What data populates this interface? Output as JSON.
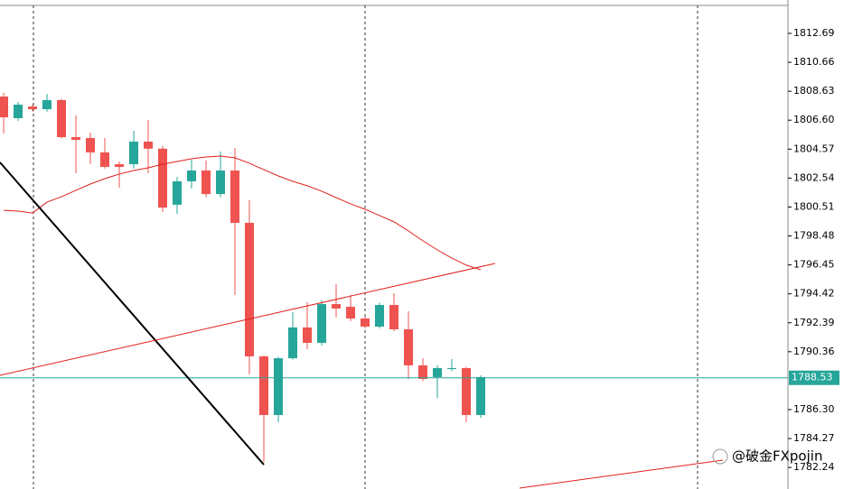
{
  "chart_data": {
    "type": "candlestick",
    "up_color": "#26a69a",
    "down_color": "#ef5350",
    "open": [
      1808.26,
      1806.74,
      1807.56,
      1807.37,
      1808.01,
      1805.41,
      1805.35,
      1804.34,
      1803.51,
      1803.51,
      1805.1,
      1804.6,
      1800.67,
      1802.31,
      1803.07,
      1801.42,
      1803.07,
      1799.4,
      1790.03,
      1785.92,
      1789.9,
      1792.06,
      1790.98,
      1793.7,
      1793.51,
      1792.69,
      1792.12,
      1793.64,
      1791.93,
      1789.4,
      1788.58,
      1789.15,
      1789.21,
      1785.92
    ],
    "high": [
      1808.51,
      1807.88,
      1807.7,
      1808.45,
      1808.1,
      1806.93,
      1805.73,
      1805.35,
      1803.7,
      1805.85,
      1806.61,
      1804.8,
      1802.62,
      1803.83,
      1803.77,
      1804.4,
      1804.65,
      1800.98,
      1790.1,
      1790.0,
      1793.13,
      1793.83,
      1793.96,
      1795.1,
      1794.34,
      1792.8,
      1793.8,
      1794.46,
      1793.2,
      1789.9,
      1789.4,
      1789.84,
      1789.3,
      1788.7
    ],
    "low": [
      1805.67,
      1806.55,
      1807.2,
      1807.2,
      1805.3,
      1802.88,
      1803.51,
      1803.2,
      1801.87,
      1803.2,
      1802.88,
      1800.16,
      1800.03,
      1801.8,
      1801.2,
      1801.2,
      1794.34,
      1788.77,
      1782.63,
      1785.41,
      1789.8,
      1790.54,
      1790.8,
      1792.77,
      1792.5,
      1792.0,
      1792.0,
      1791.8,
      1788.45,
      1788.3,
      1787.12,
      1789.0,
      1785.41,
      1785.73
    ],
    "close": [
      1806.8,
      1807.69,
      1807.37,
      1808.01,
      1805.41,
      1805.22,
      1804.34,
      1803.32,
      1803.32,
      1805.1,
      1804.6,
      1800.47,
      1802.31,
      1803.07,
      1801.42,
      1803.07,
      1799.4,
      1790.03,
      1785.92,
      1789.9,
      1792.06,
      1790.98,
      1793.7,
      1793.39,
      1792.69,
      1792.12,
      1793.64,
      1791.93,
      1789.4,
      1788.45,
      1789.21,
      1789.21,
      1785.92,
      1788.58
    ],
    "ma": {
      "color": "#e0201c",
      "values": [
        1800.28,
        1800.22,
        1800.09,
        1800.85,
        1801.23,
        1801.68,
        1802.12,
        1802.5,
        1802.82,
        1803.07,
        1803.26,
        1803.51,
        1803.7,
        1803.89,
        1804.02,
        1804.08,
        1803.96,
        1803.58,
        1803.13,
        1802.69,
        1802.31,
        1802.0,
        1801.62,
        1801.17,
        1800.73,
        1800.35,
        1799.91,
        1799.47,
        1798.83,
        1798.14,
        1797.5,
        1796.93,
        1796.43,
        1796.11
      ]
    },
    "current_price": 1788.53,
    "current_price_color": "#26a69a",
    "ylim": [
      1780.73,
      1815.03
    ],
    "yticks": [
      1812.69,
      1810.66,
      1808.63,
      {
        "value": 1806.6,
        "label": "1806.60"
      },
      1804.57,
      1802.54,
      1800.51,
      1798.48,
      1796.45,
      1794.42,
      1792.39,
      1790.36,
      {
        "value": 1786.3,
        "label": "1786.30"
      },
      1784.27,
      1782.24
    ],
    "watermark": "@破金FXpojin"
  }
}
